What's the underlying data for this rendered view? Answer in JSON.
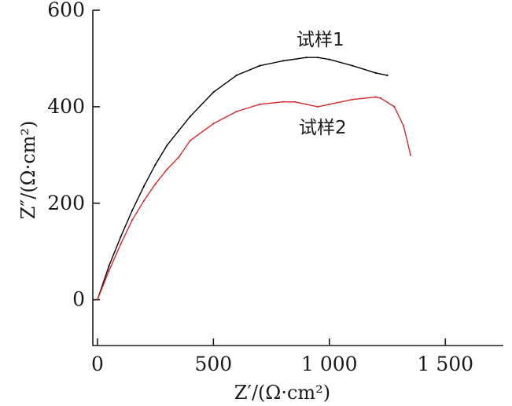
{
  "chart_data": {
    "type": "line",
    "xlabel": "Z′/(Ω·cm²)",
    "ylabel": "Z″/(Ω·cm²)",
    "xlim": [
      -20,
      1750
    ],
    "ylim": [
      -95,
      600
    ],
    "x_ticks": [
      0,
      500,
      1000,
      1500
    ],
    "x_tick_labels": [
      "0",
      "500",
      "1 000",
      "1 500"
    ],
    "y_ticks": [
      0,
      200,
      400,
      600
    ],
    "y_tick_labels": [
      "0",
      "200",
      "400",
      "600"
    ],
    "grid": false,
    "series": [
      {
        "name": "试样1",
        "color": "#000000",
        "x": [
          0,
          50,
          100,
          150,
          200,
          250,
          300,
          350,
          400,
          500,
          600,
          700,
          800,
          900,
          950,
          1000,
          1100,
          1200,
          1250
        ],
        "y": [
          0,
          70,
          130,
          185,
          235,
          280,
          320,
          350,
          380,
          430,
          465,
          485,
          495,
          502,
          502,
          498,
          485,
          470,
          465
        ]
      },
      {
        "name": "试样2",
        "color": "#d42a2a",
        "x": [
          0,
          50,
          100,
          150,
          200,
          250,
          300,
          350,
          400,
          500,
          600,
          700,
          800,
          850,
          900,
          950,
          1000,
          1100,
          1200,
          1220,
          1280,
          1320,
          1350
        ],
        "y": [
          0,
          60,
          115,
          165,
          205,
          240,
          270,
          295,
          330,
          365,
          390,
          405,
          410,
          410,
          405,
          400,
          405,
          415,
          420,
          418,
          400,
          360,
          300
        ]
      }
    ]
  }
}
